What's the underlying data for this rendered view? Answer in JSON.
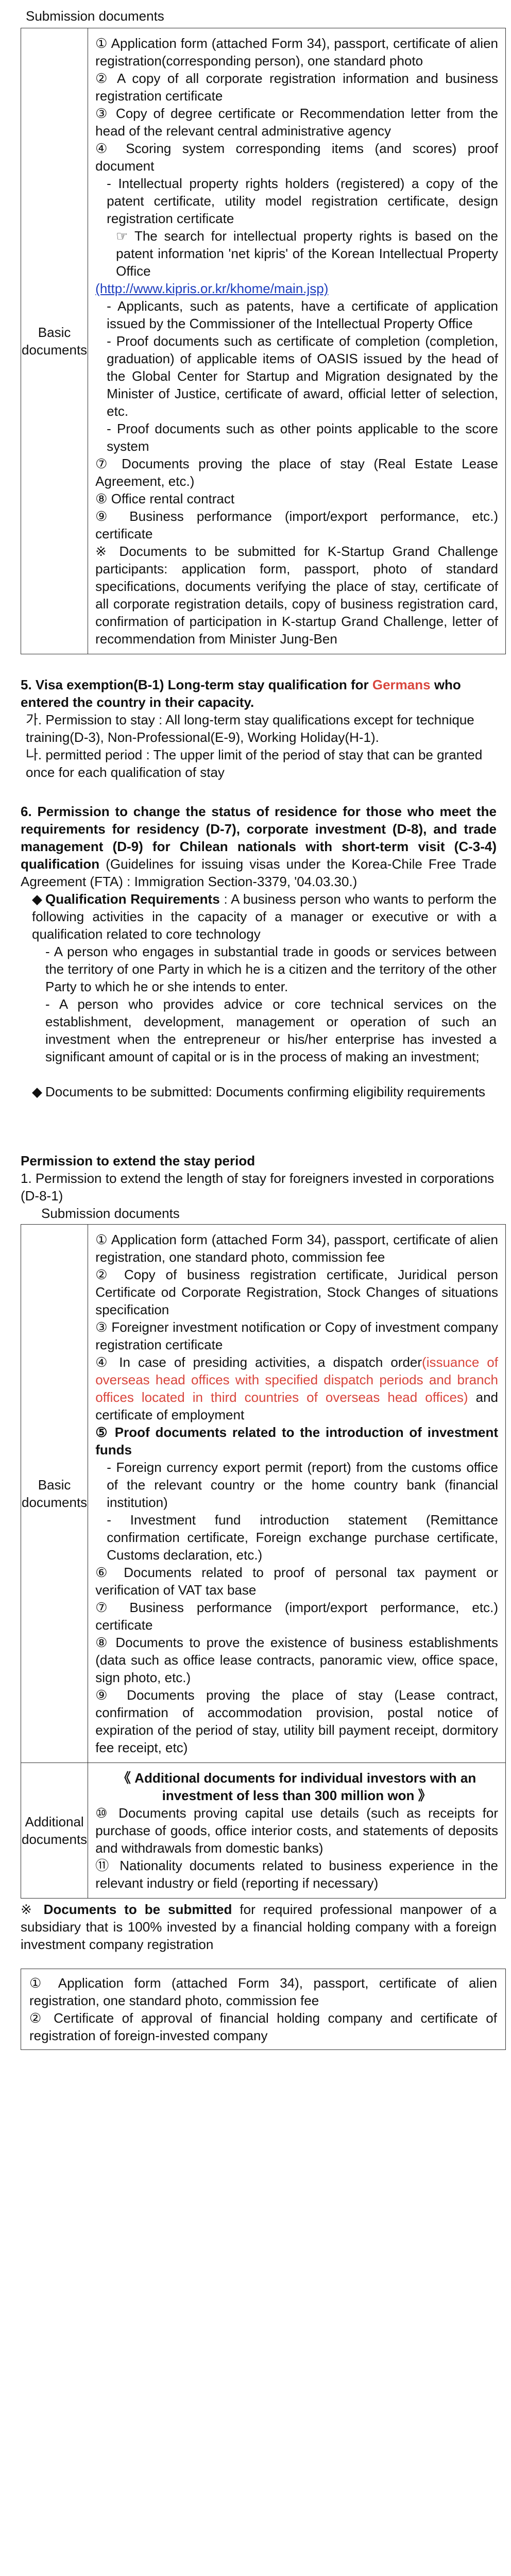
{
  "section1": {
    "title": "Submission documents",
    "label": "Basic documents",
    "items": [
      "① Application form (attached Form 34), passport, certificate of alien registration(corresponding person), one standard photo",
      "② A copy of all corporate registration information and business registration certificate",
      "③ Copy of degree certificate or Recommendation letter from the head of the relevant central administrative agency",
      "④ Scoring system corresponding items (and scores) proof document",
      " - Intellectual property rights holders (registered) a copy of the patent certificate, utility model registration certificate, design registration certificate",
      "☞ The search for intellectual property rights is based on the patent information 'net kipris' of the Korean Intellectual Property Office",
      "(http://www.kipris.or.kr/khome/main.jsp)",
      " - Applicants, such as patents, have a certificate of application issued by the Commissioner of the Intellectual Property Office",
      " - Proof documents such as certificate of completion (completion, graduation) of applicable items of OASIS issued by the head of the Global Center for Startup and Migration designated by the Minister of Justice, certificate of award, official letter of selection, etc.",
      " - Proof documents such as other points applicable to the score system",
      "⑦ Documents proving the place of stay (Real Estate Lease Agreement, etc.)",
      "⑧ Office rental contract",
      "⑨ Business performance (import/export performance, etc.) certificate",
      "※ Documents to be submitted for K-Startup Grand Challenge participants: application form, passport, photo of standard specifications, documents verifying the place of stay, certificate of all corporate registration details, copy of business registration card, confirmation of participation in K-startup Grand Challenge, letter of recommendation from Minister Jung-Ben"
    ]
  },
  "section5": {
    "title_a": "5. Visa exemption(B-1) Long-term stay qualification for ",
    "title_red": "Germans",
    "title_b": " who entered the country in their capacity.",
    "line1": "가. Permission to stay : All long-term stay qualifications except for technique training(D-3), Non-Professional(E-9), Working Holiday(H-1).",
    "line2": "나. permitted period : The upper limit of the period of stay that can be granted once for each qualification of stay"
  },
  "section6": {
    "title_bold": "6. Permission to change the status of residence for those who meet the requirements for residency (D-7), corporate investment (D-8), and trade management (D-9) for Chilean nationals with short-term visit (C-3-4) qualification",
    "title_normal": " (Guidelines for issuing visas under the Korea-Chile Free Trade Agreement (FTA) : Immigration Section-3379, '04.03.30.)",
    "req_bold": "Qualification Requirements",
    "req_text": " : A business person who wants to perform the following activities in the capacity of a manager or executive or with a qualification related to core technology",
    "req_items": [
      "- A person who engages in substantial trade in goods or services between the territory of one Party in which he is a citizen and the territory of the other Party to which he or she intends to enter.",
      "- A person who provides advice or core technical services on the establishment, development, management or operation of such an investment when the entrepreneur or his/her enterprise has invested a significant amount of capital or is in the process of making an investment;"
    ],
    "docs_line": "Documents to be submitted: Documents confirming eligibility requirements"
  },
  "extend": {
    "title": "Permission to extend the stay period",
    "line1": "1. Permission to extend the length of stay for foreigners invested in corporations (D-8-1)",
    "sub_title": "Submission documents",
    "basic_label": "Basic documents",
    "basic_items": [
      "① Application form (attached Form 34), passport, certificate of alien registration, one standard photo, commission fee",
      "② Copy of business registration certificate, Juridical person Certificate od Corporate Registration, Stock Changes of situations specification",
      "③ Foreigner investment notification or Copy of investment company registration certificate",
      "④ In case of presiding activities, a dispatch order",
      "(issuance of overseas head offices with specified dispatch periods and branch offices located in third countries of overseas head offices)",
      " and certificate of employment",
      "⑤ Proof documents related to the introduction of investment funds",
      " - Foreign currency export permit (report) from the customs office of the relevant country or the home country bank (financial institution)",
      " - Investment fund introduction statement (Remittance confirmation certificate, Foreign exchange purchase certificate, Customs declaration, etc.)",
      "⑥ Documents related to proof of personal tax payment or verification of VAT tax base",
      "⑦ Business performance (import/export performance, etc.) certificate",
      "⑧ Documents to prove the existence of business establishments (data such as office lease contracts, panoramic view, office space, sign photo, etc.)",
      "⑨ Documents proving the place of stay (Lease contract, confirmation of accommodation provision, postal notice of expiration of the period of stay, utility bill payment receipt, dormitory fee receipt, etc)"
    ],
    "additional_label": "Additional documents",
    "additional_items": [
      "《 Additional documents for individual investors with an investment of less than 300 million won 》",
      "⑩ Documents proving capital use details (such as receipts for purchase of goods, office interior costs, and statements of deposits and withdrawals from domestic banks)",
      "⑪ Nationality documents related to business experience in the relevant industry or field (reporting if necessary)"
    ],
    "note_prefix": "※ ",
    "note_bold": "Documents to be submitted",
    "note_text": " for required professional manpower of a subsidiary that is 100% invested by a financial holding company with a foreign investment company registration",
    "box_items": [
      "① Application form (attached Form 34), passport, certificate of alien registration, one standard photo, commission fee",
      "② Certificate of approval of financial holding company and certificate of registration of foreign-invested company"
    ]
  }
}
